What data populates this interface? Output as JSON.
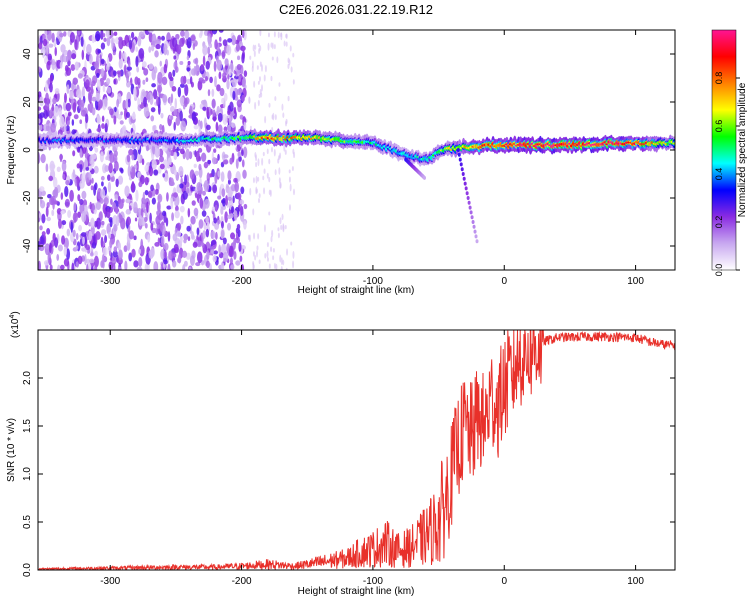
{
  "title": "C2E6.2026.031.22.19.R12",
  "chart_data": [
    {
      "type": "heatmap",
      "xlabel": "Height of straight line (km)",
      "ylabel": "Frequency (Hz)",
      "xlim": [
        -355,
        130
      ],
      "ylim": [
        -50,
        50
      ],
      "xticks": [
        -300,
        -200,
        -100,
        0,
        100
      ],
      "xtick_labels": [
        "-300",
        "-200",
        "-100",
        "0",
        "100"
      ],
      "yticks": [
        -40,
        -20,
        0,
        20,
        40
      ],
      "ytick_labels": [
        "-40",
        "-20",
        "0",
        "20",
        "40"
      ],
      "colorbar": {
        "label": "Normalized spectral amplitude",
        "range": [
          0,
          1
        ],
        "ticks": [
          0.0,
          0.2,
          0.4,
          0.6,
          0.8
        ],
        "tick_labels": [
          "0.0",
          "0.2",
          "0.4",
          "0.6",
          "0.8"
        ],
        "colors": [
          "#ffffff",
          "#c8a8f0",
          "#8a2be2",
          "#0000ff",
          "#00ffff",
          "#00ff00",
          "#ffff00",
          "#ff8000",
          "#ff0000",
          "#ff1493"
        ]
      },
      "ridge": {
        "x": [
          -300,
          -250,
          -200,
          -180,
          -150,
          -120,
          -100,
          -80,
          -60,
          -45,
          -30,
          -10,
          0,
          50,
          90,
          130
        ],
        "y": [
          4,
          4,
          5,
          5,
          5,
          4,
          3,
          -1,
          -4,
          0,
          1,
          2,
          2,
          2,
          3,
          3
        ],
        "peak_amplitude": [
          0.35,
          0.4,
          0.55,
          0.8,
          0.7,
          0.55,
          0.5,
          0.45,
          0.45,
          0.6,
          0.7,
          0.85,
          0.9,
          0.95,
          0.9,
          0.6
        ]
      },
      "noise_region_x": [
        -355,
        -197
      ]
    },
    {
      "type": "line",
      "xlabel": "Height of straight line (km)",
      "ylabel": "SNR (10 * v/v)",
      "y_scale_label": "(x10",
      "y_scale_exponent": "4",
      "xlim": [
        -355,
        130
      ],
      "ylim": [
        0,
        2.5
      ],
      "xticks": [
        -300,
        -200,
        -100,
        0,
        100
      ],
      "xtick_labels": [
        "-300",
        "-200",
        "-100",
        "0",
        "100"
      ],
      "yticks": [
        0.0,
        0.5,
        1.0,
        1.5,
        2.0
      ],
      "ytick_labels": [
        "0.0",
        "0.5",
        "1.0",
        "1.5",
        "2.0"
      ],
      "color": "#e8302a",
      "series": [
        {
          "name": "SNR",
          "x": [
            -355,
            -300,
            -250,
            -220,
            -200,
            -180,
            -160,
            -140,
            -120,
            -110,
            -100,
            -90,
            -80,
            -70,
            -60,
            -50,
            -45,
            -40,
            -35,
            -30,
            -25,
            -20,
            -15,
            -10,
            -5,
            0,
            5,
            10,
            20,
            30,
            40,
            60,
            80,
            100,
            110,
            120,
            130
          ],
          "y": [
            0.01,
            0.02,
            0.03,
            0.03,
            0.04,
            0.06,
            0.04,
            0.08,
            0.12,
            0.18,
            0.22,
            0.28,
            0.2,
            0.25,
            0.35,
            0.5,
            0.7,
            1.0,
            1.3,
            1.5,
            1.4,
            1.6,
            1.5,
            1.8,
            1.7,
            1.9,
            2.0,
            2.2,
            2.3,
            2.38,
            2.42,
            2.43,
            2.43,
            2.42,
            2.38,
            2.35,
            2.34
          ]
        }
      ]
    }
  ]
}
